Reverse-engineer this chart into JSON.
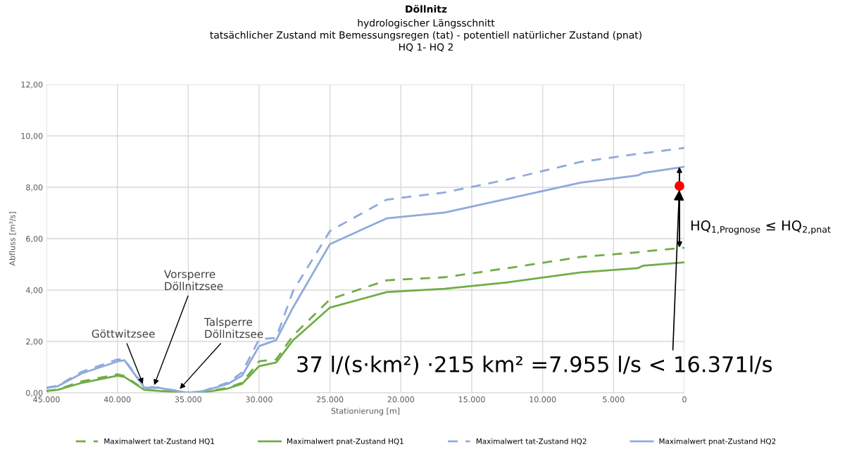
{
  "chart_data": {
    "type": "line",
    "title": "Döllnitz",
    "subtitle": "hydrologischer Längsschnitt\ntatsächlicher Zustand mit Bemessungsregen (tat) - potentiell natürlicher Zustand (pnat)\nHQ 1- HQ 2",
    "xlabel": "Stationierung [m]",
    "ylabel": "Abfluss [m³/s]",
    "x": [
      45000,
      44200,
      42500,
      40000,
      39500,
      38100,
      37000,
      35000,
      33900,
      32200,
      31200,
      30000,
      28800,
      27600,
      25000,
      21000,
      16900,
      12500,
      7300,
      3300,
      2900,
      0
    ],
    "series": [
      {
        "name": "Maximalwert tat-Zustand HQ1",
        "color": "#70ad47",
        "line_style": "dashed",
        "values": [
          0.08,
          0.13,
          0.45,
          0.72,
          0.66,
          0.13,
          0.08,
          0.0,
          0.03,
          0.2,
          0.4,
          1.23,
          1.3,
          2.23,
          3.64,
          4.38,
          4.5,
          4.85,
          5.29,
          5.47,
          5.5,
          5.65
        ]
      },
      {
        "name": "Maximalwert pnat-Zustand HQ1",
        "color": "#70ad47",
        "line_style": "solid",
        "values": [
          0.07,
          0.12,
          0.39,
          0.67,
          0.62,
          0.12,
          0.07,
          0.0,
          0.02,
          0.17,
          0.35,
          1.04,
          1.18,
          2.05,
          3.32,
          3.92,
          4.05,
          4.3,
          4.69,
          4.85,
          4.95,
          5.08
        ]
      },
      {
        "name": "Maximalwert tat-Zustand HQ2",
        "color": "#8faadc",
        "line_style": "dashed",
        "values": [
          0.2,
          0.28,
          0.82,
          1.3,
          1.3,
          0.24,
          0.2,
          0.0,
          0.08,
          0.4,
          0.8,
          2.09,
          2.14,
          3.97,
          6.3,
          7.52,
          7.8,
          8.3,
          8.99,
          9.3,
          9.32,
          9.53
        ]
      },
      {
        "name": "Maximalwert pnat-Zustand HQ2",
        "color": "#8faadc",
        "line_style": "solid",
        "values": [
          0.19,
          0.26,
          0.76,
          1.22,
          1.27,
          0.21,
          0.19,
          0.0,
          0.07,
          0.35,
          0.67,
          1.82,
          2.05,
          3.33,
          5.79,
          6.79,
          7.02,
          7.55,
          8.18,
          8.46,
          8.56,
          8.8
        ]
      },
      {
        "type": "scatter",
        "color": "#ff0000",
        "marker": "circle",
        "x": [
          350
        ],
        "values": [
          8.05
        ]
      }
    ],
    "xlim": [
      45000,
      0
    ],
    "xticks": [
      {
        "value": 45000,
        "label": "45.000"
      },
      {
        "value": 40000,
        "label": "40.000"
      },
      {
        "value": 35000,
        "label": "35.000"
      },
      {
        "value": 30000,
        "label": "30.000"
      },
      {
        "value": 25000,
        "label": "25.000"
      },
      {
        "value": 20000,
        "label": "20.000"
      },
      {
        "value": 15000,
        "label": "15.000"
      },
      {
        "value": 10000,
        "label": "10.000"
      },
      {
        "value": 5000,
        "label": "5.000"
      },
      {
        "value": 0,
        "label": "0"
      }
    ],
    "ylim": [
      0,
      12
    ],
    "yticks": [
      {
        "value": 0,
        "label": "0,00"
      },
      {
        "value": 2,
        "label": "2,00"
      },
      {
        "value": 4,
        "label": "4,00"
      },
      {
        "value": 6,
        "label": "6,00"
      },
      {
        "value": 8,
        "label": "8,00"
      },
      {
        "value": 10,
        "label": "10,00"
      },
      {
        "value": 12,
        "label": "12,00"
      }
    ],
    "grid": true,
    "legend": "bottom",
    "marker": "none",
    "annotations": [
      {
        "text": "Göttwitzsee",
        "x": 38200,
        "y": 0.35
      },
      {
        "text": "Vorsperre\nDöllnitzsee",
        "x": 37400,
        "y": 0.3
      },
      {
        "text": "Talsperre\nDöllnitzsee",
        "x": 35600,
        "y": 0.15
      },
      {
        "text": "37 l/(s·km²) ·215 km² =7.955 l/s < 16.371l/s",
        "x": 350,
        "y": 8.05
      },
      {
        "text": "HQ$_{1,Prognose}$ ≤ HQ$_{2,pnat}$"
      }
    ]
  }
}
